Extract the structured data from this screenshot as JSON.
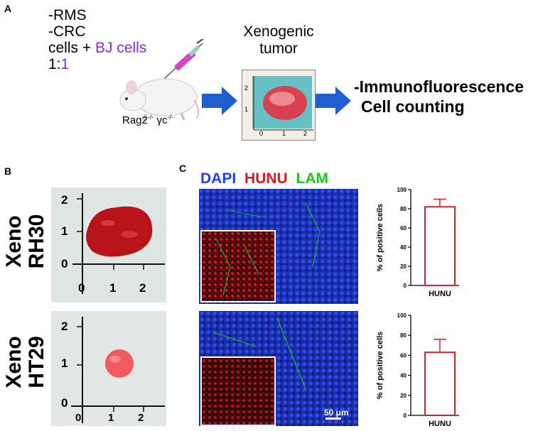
{
  "panels": {
    "a": "A",
    "b": "B",
    "c": "C"
  },
  "protocol": {
    "line1": "-RMS",
    "line2": "-CRC",
    "line3_prefix": "cells + ",
    "line3_highlight": "BJ cells",
    "line4_prefix": "1:",
    "line4_highlight": "1",
    "mouse_strain_base": "Rag2",
    "mouse_strain_sup1": "-/-",
    "mouse_strain_gamma": " γc",
    "mouse_strain_sup2": "-/-"
  },
  "xeno_tumor": {
    "label_line1": "Xenogenic",
    "label_line2": "tumor",
    "ruler_y": [
      "2",
      "1",
      "0"
    ],
    "ruler_x": [
      "1",
      "2"
    ]
  },
  "outcome": {
    "line1": "-Immunofluorescence",
    "line2": "Cell counting"
  },
  "panel_b": {
    "top_label_line1": "Xeno",
    "top_label_line2": "RH30",
    "bottom_label_line1": "Xeno",
    "bottom_label_line2": "HT29",
    "ruler_y": [
      "2",
      "1",
      "0"
    ],
    "ruler_x": [
      "0",
      "1",
      "2"
    ]
  },
  "stain": {
    "dapi": "DAPI",
    "hunu": "HUNU",
    "lam": "LAM",
    "scale_bar": "50 μm"
  },
  "colors": {
    "dapi": "#1f3fff",
    "hunu": "#e0141e",
    "lam": "#22c622",
    "bar": "#d9212b",
    "arrow": "#1f5fcf"
  },
  "chart_data": [
    {
      "type": "bar",
      "categories": [
        "HUNU"
      ],
      "values": [
        82
      ],
      "error": [
        8
      ],
      "ylabel": "% of positive cells",
      "ylim": [
        0,
        100
      ],
      "yticks": [
        "0",
        "20",
        "40",
        "60",
        "80",
        "100"
      ]
    },
    {
      "type": "bar",
      "categories": [
        "HUNU"
      ],
      "values": [
        63
      ],
      "error": [
        13
      ],
      "ylabel": "% of positive cells",
      "ylim": [
        0,
        100
      ],
      "yticks": [
        "0",
        "20",
        "40",
        "60",
        "80",
        "100"
      ]
    }
  ]
}
